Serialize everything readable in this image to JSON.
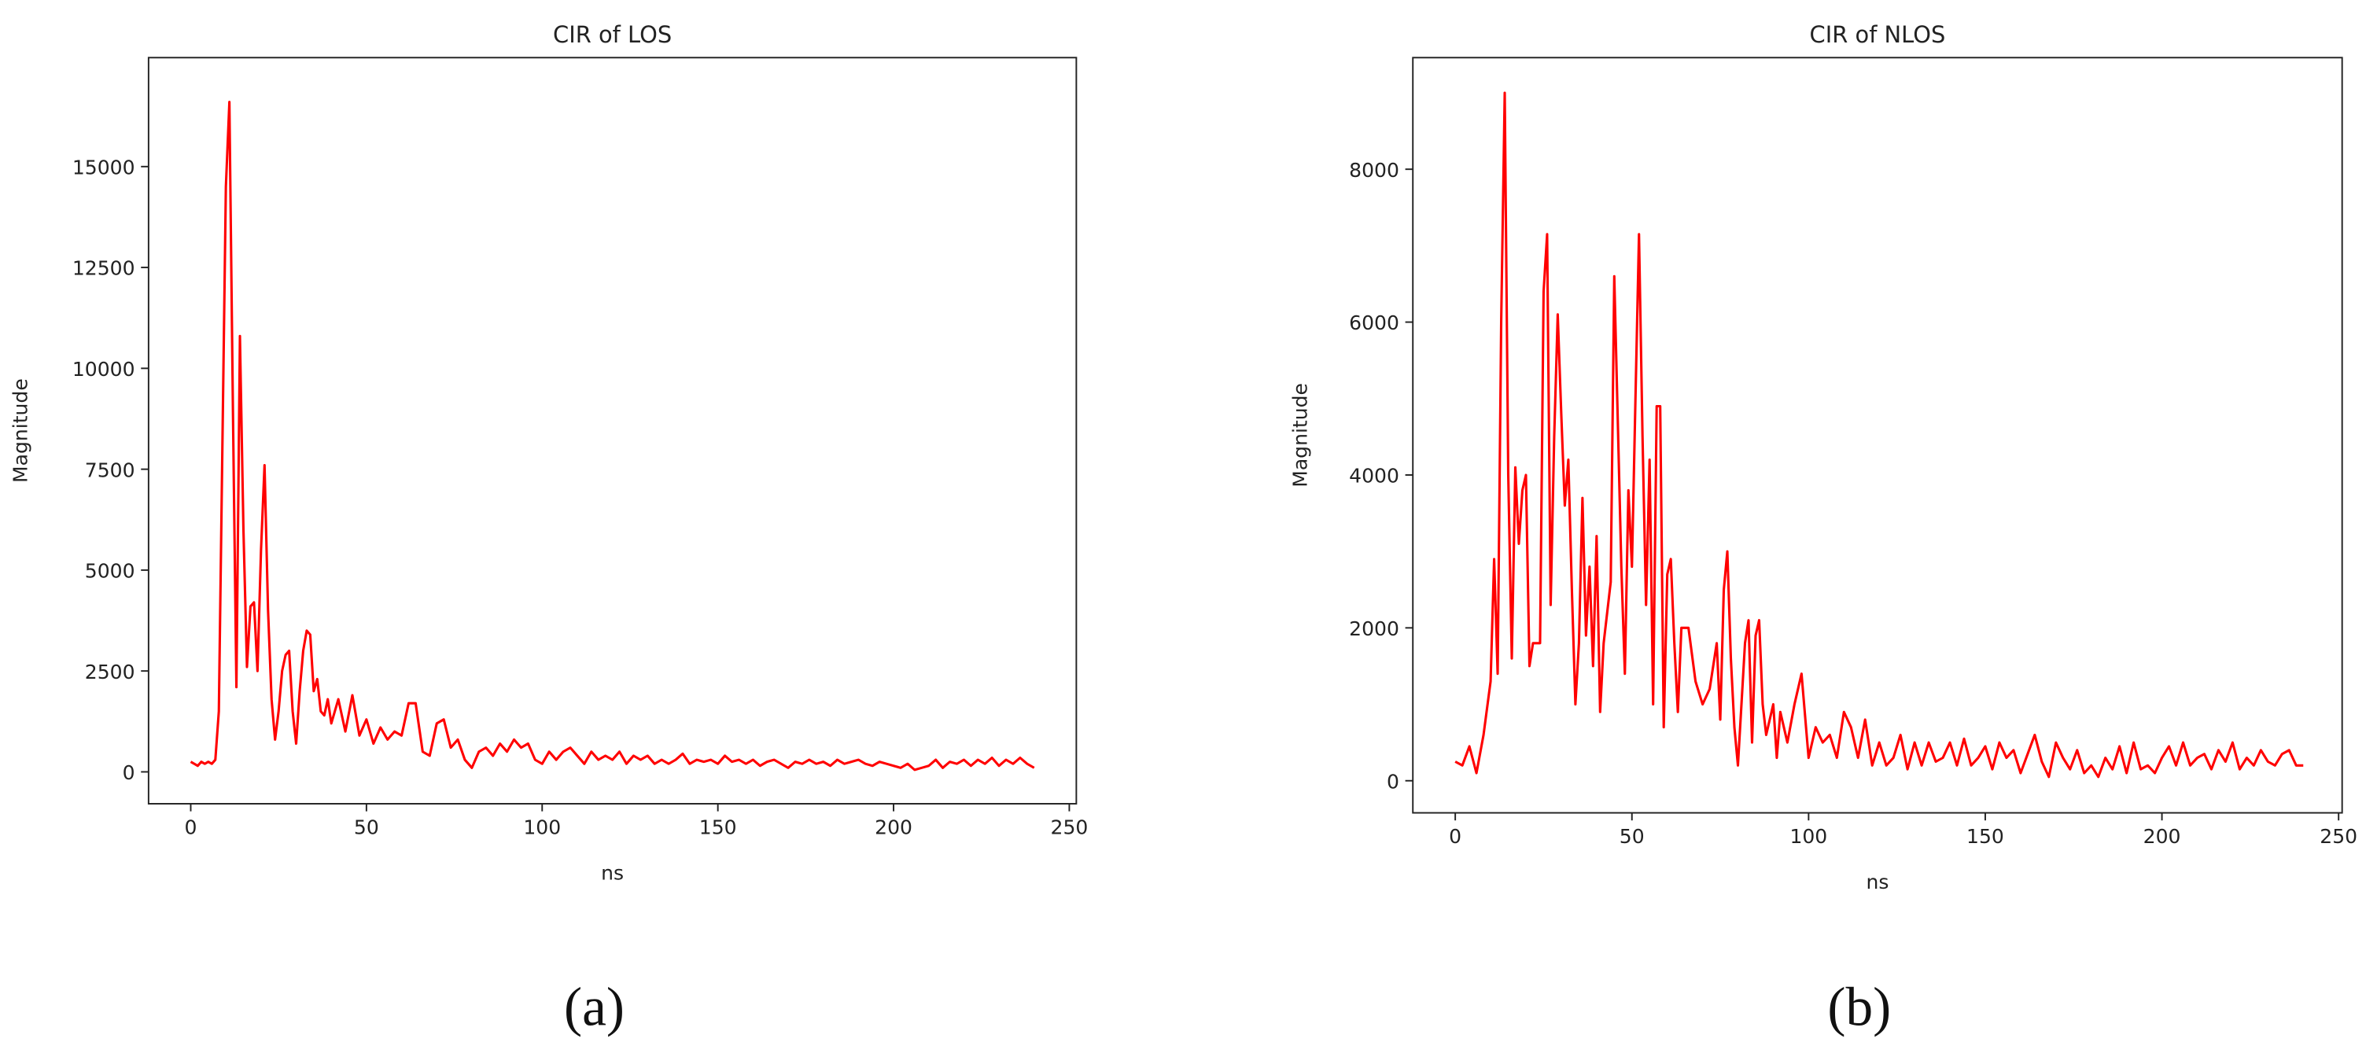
{
  "chart_data": [
    {
      "type": "line",
      "title": "CIR of LOS",
      "x_label": "ns",
      "y_label": "Magnitude",
      "caption": "(a)",
      "color": "#ff0000",
      "xlim": [
        -12,
        252
      ],
      "ylim": [
        -790,
        17700
      ],
      "xticks": [
        0,
        50,
        100,
        150,
        200,
        250
      ],
      "yticks": [
        0,
        2500,
        5000,
        7500,
        10000,
        12500,
        15000
      ],
      "x": [
        0,
        1,
        2,
        3,
        4,
        5,
        6,
        7,
        8,
        9,
        10,
        11,
        12,
        13,
        14,
        15,
        16,
        17,
        18,
        19,
        20,
        21,
        22,
        23,
        24,
        25,
        26,
        27,
        28,
        29,
        30,
        31,
        32,
        33,
        34,
        35,
        36,
        37,
        38,
        39,
        40,
        42,
        44,
        46,
        48,
        50,
        52,
        54,
        56,
        58,
        60,
        62,
        64,
        66,
        68,
        70,
        72,
        74,
        76,
        78,
        80,
        82,
        84,
        86,
        88,
        90,
        92,
        94,
        96,
        98,
        100,
        102,
        104,
        106,
        108,
        110,
        112,
        114,
        116,
        118,
        120,
        122,
        124,
        126,
        128,
        130,
        132,
        134,
        136,
        138,
        140,
        142,
        144,
        146,
        148,
        150,
        152,
        154,
        156,
        158,
        160,
        162,
        164,
        166,
        168,
        170,
        172,
        174,
        176,
        178,
        180,
        182,
        184,
        186,
        188,
        190,
        192,
        194,
        196,
        198,
        200,
        202,
        204,
        206,
        208,
        210,
        212,
        214,
        216,
        218,
        220,
        222,
        224,
        226,
        228,
        230,
        232,
        234,
        236,
        238,
        240
      ],
      "values": [
        250,
        200,
        150,
        250,
        200,
        250,
        200,
        300,
        1500,
        8000,
        14500,
        16600,
        9000,
        2100,
        10800,
        6000,
        2600,
        4100,
        4200,
        2500,
        5500,
        7600,
        4000,
        1800,
        800,
        1500,
        2500,
        2900,
        3000,
        1500,
        700,
        2000,
        3000,
        3500,
        3400,
        2000,
        2300,
        1500,
        1400,
        1800,
        1200,
        1800,
        1000,
        1900,
        900,
        1300,
        700,
        1100,
        800,
        1000,
        900,
        1700,
        1700,
        500,
        400,
        1200,
        1300,
        600,
        800,
        300,
        100,
        500,
        600,
        400,
        700,
        500,
        800,
        600,
        700,
        300,
        200,
        500,
        300,
        500,
        600,
        400,
        200,
        500,
        300,
        400,
        300,
        500,
        200,
        400,
        300,
        400,
        200,
        300,
        200,
        300,
        450,
        200,
        300,
        250,
        300,
        200,
        400,
        250,
        300,
        200,
        300,
        150,
        250,
        300,
        200,
        100,
        250,
        200,
        300,
        200,
        250,
        150,
        300,
        200,
        250,
        300,
        200,
        150,
        250,
        200,
        150,
        100,
        200,
        50,
        100,
        150,
        300,
        100,
        250,
        200,
        300,
        150,
        300,
        200,
        350,
        150,
        300,
        200,
        350,
        200,
        100
      ]
    },
    {
      "type": "line",
      "title": "CIR of NLOS",
      "x_label": "ns",
      "y_label": "Magnitude",
      "caption": "(b)",
      "color": "#ff0000",
      "xlim": [
        -12,
        251
      ],
      "ylim": [
        -420,
        9460
      ],
      "xticks": [
        0,
        50,
        100,
        150,
        200,
        250
      ],
      "yticks": [
        0,
        2000,
        4000,
        6000,
        8000
      ],
      "x": [
        0,
        2,
        4,
        6,
        8,
        10,
        11,
        12,
        13,
        14,
        15,
        16,
        17,
        18,
        19,
        20,
        21,
        22,
        24,
        25,
        26,
        27,
        28,
        29,
        30,
        31,
        32,
        33,
        34,
        35,
        36,
        37,
        38,
        39,
        40,
        41,
        42,
        44,
        45,
        46,
        47,
        48,
        49,
        50,
        51,
        52,
        53,
        54,
        55,
        56,
        57,
        58,
        59,
        60,
        61,
        62,
        63,
        64,
        66,
        68,
        70,
        72,
        74,
        75,
        76,
        77,
        78,
        79,
        80,
        82,
        83,
        84,
        85,
        86,
        87,
        88,
        90,
        91,
        92,
        94,
        96,
        98,
        100,
        102,
        104,
        106,
        108,
        110,
        112,
        114,
        116,
        118,
        120,
        122,
        124,
        126,
        128,
        130,
        132,
        134,
        136,
        138,
        140,
        142,
        144,
        146,
        148,
        150,
        152,
        154,
        156,
        158,
        160,
        162,
        164,
        166,
        168,
        170,
        172,
        174,
        176,
        178,
        180,
        182,
        184,
        186,
        188,
        190,
        192,
        194,
        196,
        198,
        200,
        202,
        204,
        206,
        208,
        210,
        212,
        214,
        216,
        218,
        220,
        222,
        224,
        226,
        228,
        230,
        232,
        234,
        236,
        238,
        240
      ],
      "values": [
        250,
        200,
        450,
        100,
        600,
        1300,
        2900,
        1400,
        6000,
        9000,
        4000,
        1600,
        4100,
        3100,
        3800,
        4000,
        1500,
        1800,
        1800,
        6400,
        7150,
        2300,
        4500,
        6100,
        4800,
        3600,
        4200,
        2500,
        1000,
        1800,
        3700,
        1900,
        2800,
        1500,
        3200,
        900,
        1800,
        2600,
        6600,
        4700,
        2800,
        1400,
        3800,
        2800,
        5000,
        7150,
        4500,
        2300,
        4200,
        1000,
        4900,
        4900,
        700,
        2700,
        2900,
        1800,
        900,
        2000,
        2000,
        1300,
        1000,
        1200,
        1800,
        800,
        2500,
        3000,
        1600,
        700,
        200,
        1800,
        2100,
        500,
        1900,
        2100,
        1000,
        600,
        1000,
        300,
        900,
        500,
        1000,
        1400,
        300,
        700,
        500,
        600,
        300,
        900,
        700,
        300,
        800,
        200,
        500,
        200,
        300,
        600,
        150,
        500,
        200,
        500,
        250,
        300,
        500,
        200,
        550,
        200,
        300,
        450,
        150,
        500,
        300,
        400,
        100,
        350,
        600,
        250,
        50,
        500,
        300,
        150,
        400,
        100,
        200,
        50,
        300,
        150,
        450,
        100,
        500,
        150,
        200,
        100,
        300,
        450,
        200,
        500,
        200,
        300,
        350,
        150,
        400,
        250,
        500,
        150,
        300,
        200,
        400,
        250,
        200,
        350,
        400,
        200,
        200
      ]
    }
  ]
}
